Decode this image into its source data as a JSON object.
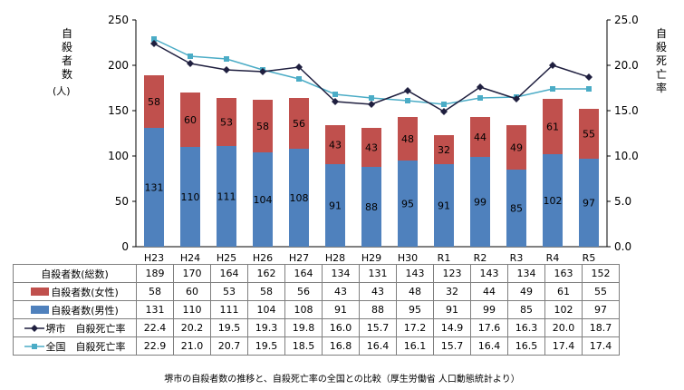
{
  "chart_data": {
    "type": "bar",
    "stacked": true,
    "categories": [
      "H23",
      "H24",
      "H25",
      "H26",
      "H27",
      "H28",
      "H29",
      "H30",
      "R1",
      "R2",
      "R3",
      "R4",
      "R5"
    ],
    "series": [
      {
        "name": "自殺者数(男性)",
        "kind": "bar",
        "axis": "left",
        "color": "#4f81bd",
        "values": [
          131,
          110,
          111,
          104,
          108,
          91,
          88,
          95,
          91,
          99,
          85,
          102,
          97
        ]
      },
      {
        "name": "自殺者数(女性)",
        "kind": "bar",
        "axis": "left",
        "color": "#c0504d",
        "values": [
          58,
          60,
          53,
          58,
          56,
          43,
          43,
          48,
          32,
          44,
          49,
          61,
          55
        ]
      },
      {
        "name": "堺市 自殺死亡率",
        "kind": "line",
        "axis": "right",
        "color": "#1f1f3f",
        "marker": "diamond",
        "values": [
          22.4,
          20.2,
          19.5,
          19.3,
          19.8,
          16.0,
          15.7,
          17.2,
          14.9,
          17.6,
          16.3,
          20.0,
          18.7
        ]
      },
      {
        "name": "全国 自殺死亡率",
        "kind": "line",
        "axis": "right",
        "color": "#4bacc6",
        "marker": "square",
        "values": [
          22.9,
          21.0,
          20.7,
          19.5,
          18.5,
          16.8,
          16.4,
          16.1,
          15.7,
          16.4,
          16.5,
          17.4,
          17.4
        ]
      }
    ],
    "totals": {
      "name": "自殺者数(総数)",
      "values": [
        189,
        170,
        164,
        162,
        164,
        134,
        131,
        143,
        123,
        143,
        134,
        163,
        152
      ]
    },
    "left_axis": {
      "title": "自殺者数",
      "unit": "(人)",
      "ylim": [
        0,
        250
      ],
      "ticks": [
        "0",
        "50",
        "100",
        "150",
        "200",
        "250"
      ]
    },
    "right_axis": {
      "title": "自殺死亡率",
      "ylim": [
        0,
        25
      ],
      "ticks": [
        "0.0",
        "5.0",
        "10.0",
        "15.0",
        "20.0",
        "25.0"
      ]
    },
    "grid": false,
    "legend": "data-table-below",
    "caption": "堺市の自殺者数の推移と、自殺死亡率の全国との比較（厚生労働省 人口動態統計より）"
  },
  "table": {
    "rows": [
      {
        "label": "自殺者数(総数)",
        "swatch": "none",
        "values": [
          "189",
          "170",
          "164",
          "162",
          "164",
          "134",
          "131",
          "143",
          "123",
          "143",
          "134",
          "163",
          "152"
        ]
      },
      {
        "label": "自殺者数(女性)",
        "swatch": "box",
        "color": "#c0504d",
        "values": [
          "58",
          "60",
          "53",
          "58",
          "56",
          "43",
          "43",
          "48",
          "32",
          "44",
          "49",
          "61",
          "55"
        ]
      },
      {
        "label": "自殺者数(男性)",
        "swatch": "box",
        "color": "#4f81bd",
        "values": [
          "131",
          "110",
          "111",
          "104",
          "108",
          "91",
          "88",
          "95",
          "91",
          "99",
          "85",
          "102",
          "97"
        ]
      },
      {
        "label": "堺市　自殺死亡率",
        "swatch": "line-diamond",
        "color": "#1f1f3f",
        "values": [
          "22.4",
          "20.2",
          "19.5",
          "19.3",
          "19.8",
          "16.0",
          "15.7",
          "17.2",
          "14.9",
          "17.6",
          "16.3",
          "20.0",
          "18.7"
        ]
      },
      {
        "label": "全国　自殺死亡率",
        "swatch": "line-square",
        "color": "#4bacc6",
        "values": [
          "22.9",
          "21.0",
          "20.7",
          "19.5",
          "18.5",
          "16.8",
          "16.4",
          "16.1",
          "15.7",
          "16.4",
          "16.5",
          "17.4",
          "17.4"
        ]
      }
    ]
  }
}
